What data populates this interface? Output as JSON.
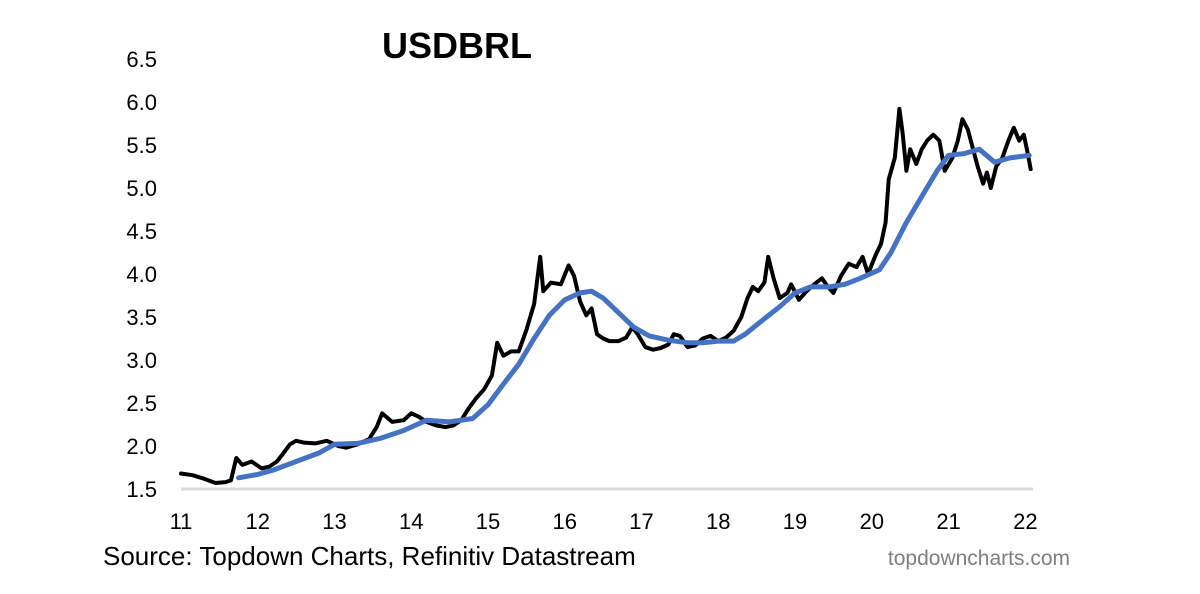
{
  "chart_data": {
    "type": "line",
    "title": "USDBRL",
    "xlabel": "",
    "ylabel": "",
    "x_tick_labels": [
      "11",
      "12",
      "13",
      "14",
      "15",
      "16",
      "17",
      "18",
      "19",
      "20",
      "21",
      "22"
    ],
    "x_tick_years": [
      2011,
      2012,
      2013,
      2014,
      2015,
      2016,
      2017,
      2018,
      2019,
      2020,
      2021,
      2022
    ],
    "y_tick_labels": [
      "1.5",
      "2.0",
      "2.5",
      "3.0",
      "3.5",
      "4.0",
      "4.5",
      "5.0",
      "5.5",
      "6.0",
      "6.5"
    ],
    "y_tick_values": [
      1.5,
      2.0,
      2.5,
      3.0,
      3.5,
      4.0,
      4.5,
      5.0,
      5.5,
      6.0,
      6.5
    ],
    "xlim": [
      2011.0,
      2022.1
    ],
    "ylim": [
      1.5,
      6.5
    ],
    "grid": false,
    "legend": "none",
    "series": [
      {
        "color": "#000000",
        "points": [
          [
            2011.0,
            1.68
          ],
          [
            2011.15,
            1.66
          ],
          [
            2011.3,
            1.62
          ],
          [
            2011.45,
            1.57
          ],
          [
            2011.58,
            1.58
          ],
          [
            2011.65,
            1.6
          ],
          [
            2011.72,
            1.86
          ],
          [
            2011.8,
            1.78
          ],
          [
            2011.92,
            1.82
          ],
          [
            2012.05,
            1.74
          ],
          [
            2012.15,
            1.76
          ],
          [
            2012.25,
            1.82
          ],
          [
            2012.32,
            1.9
          ],
          [
            2012.42,
            2.02
          ],
          [
            2012.5,
            2.06
          ],
          [
            2012.6,
            2.04
          ],
          [
            2012.75,
            2.03
          ],
          [
            2012.9,
            2.06
          ],
          [
            2013.05,
            2.0
          ],
          [
            2013.15,
            1.98
          ],
          [
            2013.3,
            2.02
          ],
          [
            2013.45,
            2.08
          ],
          [
            2013.55,
            2.22
          ],
          [
            2013.62,
            2.38
          ],
          [
            2013.75,
            2.28
          ],
          [
            2013.9,
            2.3
          ],
          [
            2014.0,
            2.38
          ],
          [
            2014.1,
            2.34
          ],
          [
            2014.2,
            2.28
          ],
          [
            2014.32,
            2.24
          ],
          [
            2014.45,
            2.22
          ],
          [
            2014.55,
            2.24
          ],
          [
            2014.65,
            2.3
          ],
          [
            2014.75,
            2.44
          ],
          [
            2014.85,
            2.56
          ],
          [
            2014.95,
            2.66
          ],
          [
            2015.05,
            2.82
          ],
          [
            2015.12,
            3.2
          ],
          [
            2015.2,
            3.05
          ],
          [
            2015.3,
            3.1
          ],
          [
            2015.4,
            3.1
          ],
          [
            2015.5,
            3.35
          ],
          [
            2015.6,
            3.65
          ],
          [
            2015.68,
            4.2
          ],
          [
            2015.72,
            3.8
          ],
          [
            2015.82,
            3.9
          ],
          [
            2015.95,
            3.88
          ],
          [
            2016.05,
            4.1
          ],
          [
            2016.12,
            3.98
          ],
          [
            2016.2,
            3.68
          ],
          [
            2016.28,
            3.52
          ],
          [
            2016.35,
            3.6
          ],
          [
            2016.42,
            3.3
          ],
          [
            2016.5,
            3.25
          ],
          [
            2016.58,
            3.22
          ],
          [
            2016.7,
            3.22
          ],
          [
            2016.8,
            3.26
          ],
          [
            2016.88,
            3.38
          ],
          [
            2016.95,
            3.3
          ],
          [
            2017.05,
            3.15
          ],
          [
            2017.15,
            3.12
          ],
          [
            2017.25,
            3.14
          ],
          [
            2017.35,
            3.18
          ],
          [
            2017.42,
            3.3
          ],
          [
            2017.5,
            3.28
          ],
          [
            2017.6,
            3.15
          ],
          [
            2017.7,
            3.17
          ],
          [
            2017.8,
            3.25
          ],
          [
            2017.9,
            3.28
          ],
          [
            2018.0,
            3.22
          ],
          [
            2018.1,
            3.26
          ],
          [
            2018.2,
            3.34
          ],
          [
            2018.3,
            3.5
          ],
          [
            2018.38,
            3.72
          ],
          [
            2018.45,
            3.85
          ],
          [
            2018.52,
            3.8
          ],
          [
            2018.6,
            3.9
          ],
          [
            2018.65,
            4.2
          ],
          [
            2018.72,
            3.95
          ],
          [
            2018.8,
            3.72
          ],
          [
            2018.9,
            3.78
          ],
          [
            2018.95,
            3.88
          ],
          [
            2019.05,
            3.7
          ],
          [
            2019.15,
            3.8
          ],
          [
            2019.25,
            3.88
          ],
          [
            2019.35,
            3.95
          ],
          [
            2019.42,
            3.86
          ],
          [
            2019.5,
            3.78
          ],
          [
            2019.6,
            3.98
          ],
          [
            2019.7,
            4.12
          ],
          [
            2019.8,
            4.08
          ],
          [
            2019.88,
            4.2
          ],
          [
            2019.95,
            4.0
          ],
          [
            2020.05,
            4.22
          ],
          [
            2020.12,
            4.35
          ],
          [
            2020.18,
            4.6
          ],
          [
            2020.22,
            5.1
          ],
          [
            2020.3,
            5.35
          ],
          [
            2020.36,
            5.92
          ],
          [
            2020.4,
            5.65
          ],
          [
            2020.45,
            5.2
          ],
          [
            2020.5,
            5.45
          ],
          [
            2020.58,
            5.28
          ],
          [
            2020.65,
            5.45
          ],
          [
            2020.72,
            5.55
          ],
          [
            2020.8,
            5.62
          ],
          [
            2020.88,
            5.55
          ],
          [
            2020.95,
            5.2
          ],
          [
            2021.05,
            5.35
          ],
          [
            2021.12,
            5.55
          ],
          [
            2021.18,
            5.8
          ],
          [
            2021.25,
            5.68
          ],
          [
            2021.32,
            5.45
          ],
          [
            2021.38,
            5.25
          ],
          [
            2021.45,
            5.05
          ],
          [
            2021.5,
            5.18
          ],
          [
            2021.55,
            5.0
          ],
          [
            2021.62,
            5.25
          ],
          [
            2021.7,
            5.35
          ],
          [
            2021.78,
            5.55
          ],
          [
            2021.85,
            5.7
          ],
          [
            2021.92,
            5.55
          ],
          [
            2021.98,
            5.62
          ],
          [
            2022.02,
            5.45
          ],
          [
            2022.07,
            5.22
          ]
        ]
      },
      {
        "color": "#4472c4",
        "points": [
          [
            2011.75,
            1.63
          ],
          [
            2012.0,
            1.67
          ],
          [
            2012.2,
            1.72
          ],
          [
            2012.5,
            1.82
          ],
          [
            2012.8,
            1.92
          ],
          [
            2013.0,
            2.02
          ],
          [
            2013.3,
            2.03
          ],
          [
            2013.6,
            2.09
          ],
          [
            2013.9,
            2.18
          ],
          [
            2014.2,
            2.3
          ],
          [
            2014.5,
            2.28
          ],
          [
            2014.8,
            2.32
          ],
          [
            2015.0,
            2.48
          ],
          [
            2015.2,
            2.72
          ],
          [
            2015.4,
            2.95
          ],
          [
            2015.6,
            3.25
          ],
          [
            2015.8,
            3.52
          ],
          [
            2016.0,
            3.7
          ],
          [
            2016.2,
            3.78
          ],
          [
            2016.35,
            3.8
          ],
          [
            2016.5,
            3.72
          ],
          [
            2016.7,
            3.55
          ],
          [
            2016.9,
            3.38
          ],
          [
            2017.1,
            3.28
          ],
          [
            2017.35,
            3.23
          ],
          [
            2017.6,
            3.2
          ],
          [
            2017.8,
            3.2
          ],
          [
            2018.0,
            3.22
          ],
          [
            2018.2,
            3.22
          ],
          [
            2018.35,
            3.3
          ],
          [
            2018.6,
            3.48
          ],
          [
            2018.8,
            3.62
          ],
          [
            2019.0,
            3.78
          ],
          [
            2019.2,
            3.85
          ],
          [
            2019.45,
            3.85
          ],
          [
            2019.65,
            3.88
          ],
          [
            2019.85,
            3.95
          ],
          [
            2020.1,
            4.05
          ],
          [
            2020.25,
            4.25
          ],
          [
            2020.45,
            4.6
          ],
          [
            2020.65,
            4.9
          ],
          [
            2020.85,
            5.2
          ],
          [
            2021.0,
            5.38
          ],
          [
            2021.2,
            5.4
          ],
          [
            2021.4,
            5.45
          ],
          [
            2021.6,
            5.3
          ],
          [
            2021.8,
            5.35
          ],
          [
            2022.05,
            5.38
          ]
        ]
      }
    ]
  },
  "footer": {
    "source": "Source: Topdown Charts, Refinitiv Datastream",
    "watermark": "topdowncharts.com"
  },
  "colors": {
    "axis": "#d9d9d9",
    "price_line": "#000000",
    "moving_average": "#4472c4",
    "watermark": "#7f7f7f"
  }
}
